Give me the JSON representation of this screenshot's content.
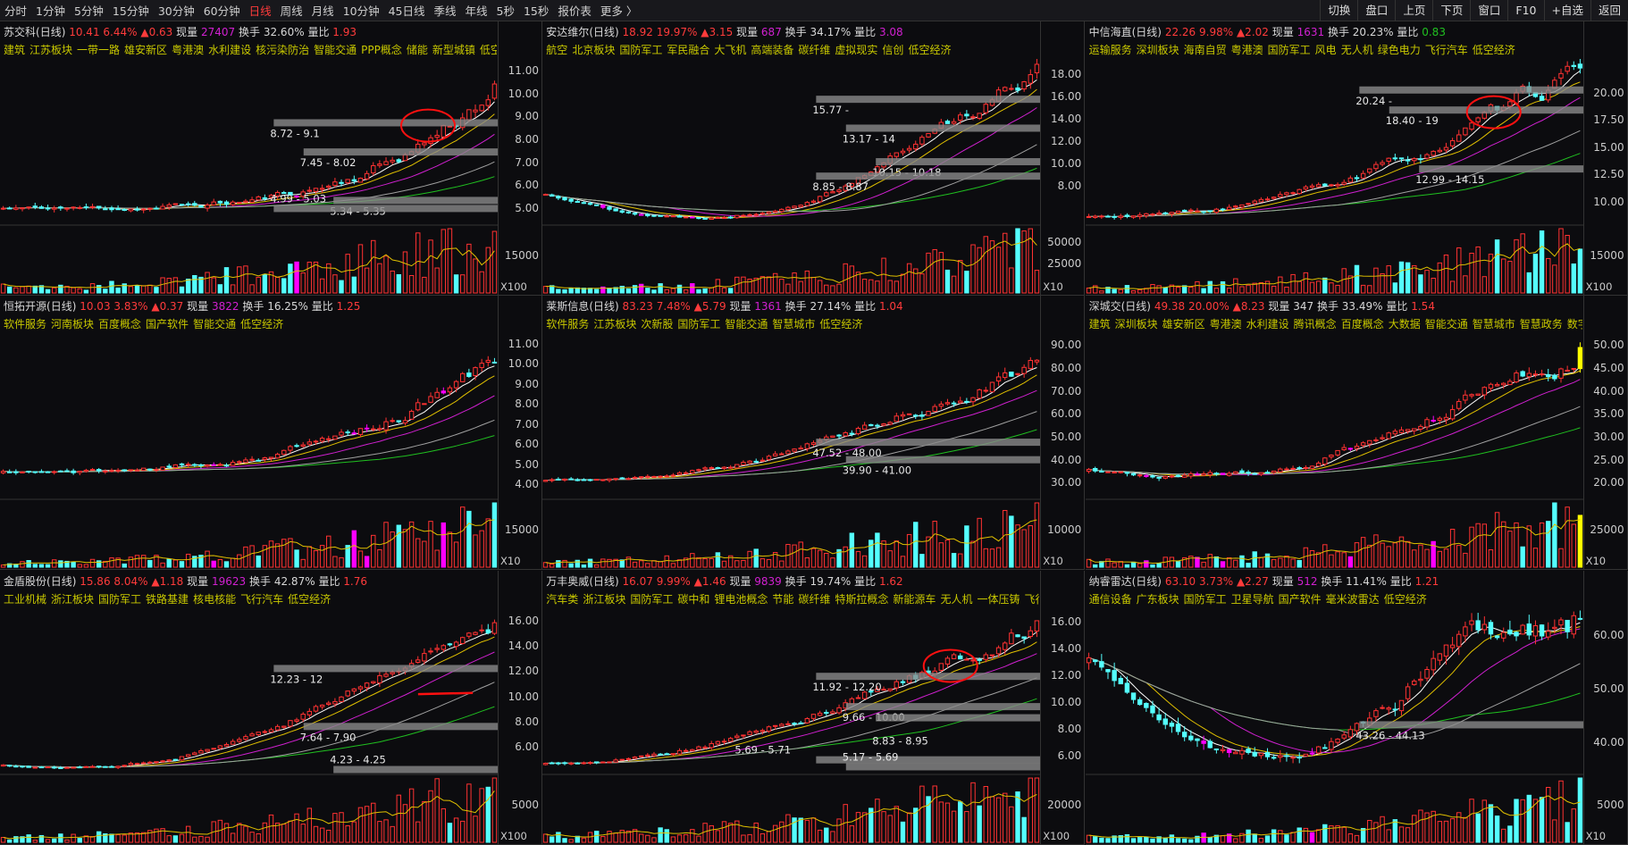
{
  "toolbar": {
    "periods": [
      "分时",
      "1分钟",
      "5分钟",
      "15分钟",
      "30分钟",
      "60分钟",
      "日线",
      "周线",
      "月线",
      "10分钟",
      "45日线",
      "季线",
      "年线",
      "5秒",
      "15秒",
      "报价表",
      "更多 〉"
    ],
    "active_period": "日线",
    "buttons": [
      "切换",
      "盘口",
      "上页",
      "下页",
      "窗口",
      "F10",
      "+自选",
      "返回"
    ]
  },
  "colors": {
    "up": "#ff3232",
    "down": "#54ffff",
    "limit_up": "#ffff00",
    "price": "#ff3b3b",
    "volume": "#d020d0",
    "tag": "#c8c800",
    "ma5": "#ffffff",
    "ma10": "#e0c000",
    "ma20": "#d020d0",
    "ma60": "#20c020",
    "ma120": "#a0a0a0"
  },
  "panels": [
    {
      "name": "苏交科",
      "period": "(日线)",
      "price": "10.41",
      "pct": "6.44%",
      "change": "▲0.63",
      "vol_label": "现量",
      "vol": "27407",
      "vol_color": "#d020d0",
      "turn_label": "换手",
      "turn": "32.60%",
      "ratio_label": "量比",
      "ratio": "1.93",
      "ratio_color": "#ff3b3b",
      "tags": [
        "建筑",
        "江苏板块",
        "一带一路",
        "雄安新区",
        "粤港澳",
        "水利建设",
        "核污染防治",
        "智能交通",
        "PPP概念",
        "储能",
        "新型城镇",
        "低空经济"
      ],
      "price_ticks": [
        "11.00",
        "10.00",
        "9.00",
        "8.00",
        "7.00",
        "6.00",
        "5.00"
      ],
      "volume_tick": "15000",
      "volume_unit": "X100",
      "gaps": [
        "8.72 - 9.1",
        "7.45 - 8.02",
        "5.34 - 5.35",
        "4.99 - 5.03"
      ]
    },
    {
      "name": "安达维尔",
      "period": "(日线)",
      "price": "18.92",
      "pct": "19.97%",
      "change": "▲3.15",
      "vol_label": "现量",
      "vol": "687",
      "vol_color": "#d020d0",
      "turn_label": "换手",
      "turn": "34.17%",
      "ratio_label": "量比",
      "ratio": "3.08",
      "ratio_color": "#d020d0",
      "tags": [
        "航空",
        "北京板块",
        "国防军工",
        "军民融合",
        "大飞机",
        "高端装备",
        "碳纤维",
        "虚拟现实",
        "信创",
        "低空经济"
      ],
      "price_ticks": [
        "18.00",
        "16.00",
        "14.00",
        "12.00",
        "10.00",
        "8.00"
      ],
      "volume_tick": "50000",
      "volume_tick2": "25000",
      "volume_unit": "X10",
      "gaps": [
        "15.77 -",
        "13.17 - 14",
        "10.15 - 10.18",
        "8.85 - 8.87"
      ]
    },
    {
      "name": "中信海直",
      "period": "(日线)",
      "price": "22.26",
      "pct": "9.98%",
      "change": "▲2.02",
      "vol_label": "现量",
      "vol": "1631",
      "vol_color": "#d020d0",
      "turn_label": "换手",
      "turn": "20.23%",
      "ratio_label": "量比",
      "ratio": "0.83",
      "ratio_color": "#20c020",
      "tags": [
        "运输服务",
        "深圳板块",
        "海南自贸",
        "粤港澳",
        "国防军工",
        "风电",
        "无人机",
        "绿色电力",
        "飞行汽车",
        "低空经济"
      ],
      "price_ticks": [
        "20.00",
        "17.50",
        "15.00",
        "12.50",
        "10.00"
      ],
      "volume_tick": "15000",
      "volume_unit": "X100",
      "gaps": [
        "20.24 -",
        "18.40 - 19",
        "12.99 - 14.15"
      ]
    },
    {
      "name": "恒拓开源",
      "period": "(日线)",
      "price": "10.03",
      "pct": "3.83%",
      "change": "▲0.37",
      "vol_label": "现量",
      "vol": "3822",
      "vol_color": "#d020d0",
      "turn_label": "换手",
      "turn": "16.25%",
      "ratio_label": "量比",
      "ratio": "1.25",
      "ratio_color": "#ff3b3b",
      "tags": [
        "软件服务",
        "河南板块",
        "百度概念",
        "国产软件",
        "智能交通",
        "低空经济"
      ],
      "price_ticks": [
        "11.00",
        "10.00",
        "9.00",
        "8.00",
        "7.00",
        "6.00",
        "5.00",
        "4.00"
      ],
      "volume_tick": "15000",
      "volume_unit": "X10",
      "gaps": []
    },
    {
      "name": "莱斯信息",
      "period": "(日线)",
      "price": "83.23",
      "pct": "7.48%",
      "change": "▲5.79",
      "vol_label": "现量",
      "vol": "1361",
      "vol_color": "#d020d0",
      "turn_label": "换手",
      "turn": "27.14%",
      "ratio_label": "量比",
      "ratio": "1.04",
      "ratio_color": "#ff3b3b",
      "tags": [
        "软件服务",
        "江苏板块",
        "次新股",
        "国防军工",
        "智能交通",
        "智慧城市",
        "低空经济"
      ],
      "price_ticks": [
        "90.00",
        "80.00",
        "70.00",
        "60.00",
        "50.00",
        "40.00",
        "30.00"
      ],
      "volume_tick": "10000",
      "volume_unit": "X10",
      "gaps": [
        "47.52 - 48.00",
        "39.90 - 41.00"
      ]
    },
    {
      "name": "深城交",
      "period": "(日线)",
      "price": "49.38",
      "pct": "20.00%",
      "change": "▲8.23",
      "vol_label": "现量",
      "vol": "347",
      "vol_color": "#d8d8d8",
      "turn_label": "换手",
      "turn": "33.49%",
      "ratio_label": "量比",
      "ratio": "1.54",
      "ratio_color": "#ff3b3b",
      "tags": [
        "建筑",
        "深圳板块",
        "雄安新区",
        "粤港澳",
        "水利建设",
        "腾讯概念",
        "百度概念",
        "大数据",
        "智能交通",
        "智慧城市",
        "智慧政务",
        "数字经济"
      ],
      "price_ticks": [
        "50.00",
        "45.00",
        "40.00",
        "35.00",
        "30.00",
        "25.00",
        "20.00"
      ],
      "volume_tick": "25000",
      "volume_unit": "X10",
      "gaps": []
    },
    {
      "name": "金盾股份",
      "period": "(日线)",
      "price": "15.86",
      "pct": "8.04%",
      "change": "▲1.18",
      "vol_label": "现量",
      "vol": "19623",
      "vol_color": "#d020d0",
      "turn_label": "换手",
      "turn": "42.87%",
      "ratio_label": "量比",
      "ratio": "1.76",
      "ratio_color": "#ff3b3b",
      "tags": [
        "工业机械",
        "浙江板块",
        "国防军工",
        "铁路基建",
        "核电核能",
        "飞行汽车",
        "低空经济"
      ],
      "price_ticks": [
        "16.00",
        "14.00",
        "12.00",
        "10.00",
        "8.00",
        "6.00"
      ],
      "volume_tick": "5000",
      "volume_unit": "X100",
      "gaps": [
        "12.23 - 12",
        "7.64 - 7.90",
        "4.23 - 4.25"
      ]
    },
    {
      "name": "万丰奥威",
      "period": "(日线)",
      "price": "16.07",
      "pct": "9.99%",
      "change": "▲1.46",
      "vol_label": "现量",
      "vol": "9839",
      "vol_color": "#d020d0",
      "turn_label": "换手",
      "turn": "19.74%",
      "ratio_label": "量比",
      "ratio": "1.62",
      "ratio_color": "#ff3b3b",
      "tags": [
        "汽车类",
        "浙江板块",
        "国防军工",
        "碳中和",
        "锂电池概念",
        "节能",
        "碳纤维",
        "特斯拉概念",
        "新能源车",
        "无人机",
        "一体压铸",
        "飞行汽车"
      ],
      "price_ticks": [
        "16.00",
        "14.00",
        "12.00",
        "10.00",
        "8.00",
        "6.00"
      ],
      "volume_tick": "20000",
      "volume_unit": "X100",
      "gaps": [
        "11.92 - 12.20",
        "9.66 - 10.00",
        "8.83 - 8.95",
        "5.69 - 5.71",
        "5.17 - 5.69"
      ]
    },
    {
      "name": "纳睿雷达",
      "period": "(日线)",
      "price": "63.10",
      "pct": "3.73%",
      "change": "▲2.27",
      "vol_label": "现量",
      "vol": "512",
      "vol_color": "#d020d0",
      "turn_label": "换手",
      "turn": "11.41%",
      "ratio_label": "量比",
      "ratio": "1.21",
      "ratio_color": "#ff3b3b",
      "tags": [
        "通信设备",
        "广东板块",
        "国防军工",
        "卫星导航",
        "国产软件",
        "毫米波雷达",
        "低空经济"
      ],
      "price_ticks": [
        "60.00",
        "50.00",
        "40.00"
      ],
      "volume_tick": "5000",
      "volume_unit": "X10",
      "gaps": [
        "43.26 - 44.13"
      ]
    }
  ]
}
